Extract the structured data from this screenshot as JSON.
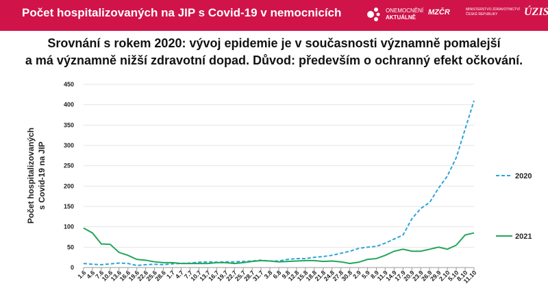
{
  "header": {
    "title": "Počet hospitalizovaných na JIP s Covid-19 v nemocnicích",
    "logos": {
      "onemocneni": [
        "ONEMOCNĚNÍ",
        "AKTUÁLNĚ"
      ],
      "ministry": "MZČR",
      "ministry_text": [
        "MINISTERSTVO ZDRAVOTNICTVÍ",
        "ČESKÉ REPUBLIKY"
      ],
      "uzis": "ÚZIS"
    }
  },
  "subtitle": [
    "Srovnání s rokem 2020: vývoj epidemie je v současnosti významně pomalejší",
    "a má významně nižší zdravotní dopad. Důvod: především o ochranný efekt očkování."
  ],
  "chart_data": {
    "type": "line",
    "title": "",
    "ylabel": [
      "Počet hospitalizovaných",
      "s Covid-19 na JIP"
    ],
    "xlabel": "",
    "ylim": [
      0,
      450
    ],
    "yticks": [
      0,
      50,
      100,
      150,
      200,
      250,
      300,
      350,
      400,
      450
    ],
    "grid": true,
    "legend": "right",
    "x": [
      "1.6",
      "4.6",
      "7.6",
      "10.6",
      "13.6",
      "16.6",
      "19.6",
      "22.6",
      "25.6",
      "28.6",
      "1.7",
      "4.7",
      "7.7",
      "10.7",
      "13.7",
      "16.7",
      "19.7",
      "22.7",
      "25.7",
      "28.7",
      "31.7",
      "3.8",
      "6.8",
      "9.8",
      "12.8",
      "15.8",
      "18.8",
      "21.8",
      "24.8",
      "27.8",
      "30.8",
      "2.9",
      "5.9",
      "8.9",
      "11.9",
      "14.9",
      "17.9",
      "20.9",
      "23.9",
      "26.9",
      "29.9",
      "2.10",
      "5.10",
      "8.10",
      "11.10"
    ],
    "series": [
      {
        "name": "2020",
        "color": "#2aa3d8",
        "dash": true,
        "values": [
          10,
          8,
          7,
          9,
          11,
          10,
          5,
          7,
          8,
          7,
          9,
          10,
          11,
          13,
          14,
          13,
          14,
          14,
          15,
          16,
          18,
          16,
          16,
          20,
          22,
          22,
          25,
          27,
          30,
          35,
          40,
          47,
          50,
          52,
          60,
          70,
          80,
          120,
          145,
          160,
          195,
          225,
          270,
          340,
          410
        ]
      },
      {
        "name": "2021",
        "color": "#1fa65a",
        "dash": false,
        "values": [
          97,
          85,
          58,
          57,
          37,
          30,
          20,
          18,
          14,
          12,
          12,
          10,
          10,
          10,
          10,
          12,
          12,
          10,
          12,
          15,
          17,
          16,
          14,
          15,
          16,
          17,
          17,
          15,
          16,
          14,
          10,
          13,
          20,
          22,
          30,
          40,
          45,
          40,
          40,
          45,
          50,
          45,
          55,
          80,
          85
        ]
      }
    ]
  }
}
